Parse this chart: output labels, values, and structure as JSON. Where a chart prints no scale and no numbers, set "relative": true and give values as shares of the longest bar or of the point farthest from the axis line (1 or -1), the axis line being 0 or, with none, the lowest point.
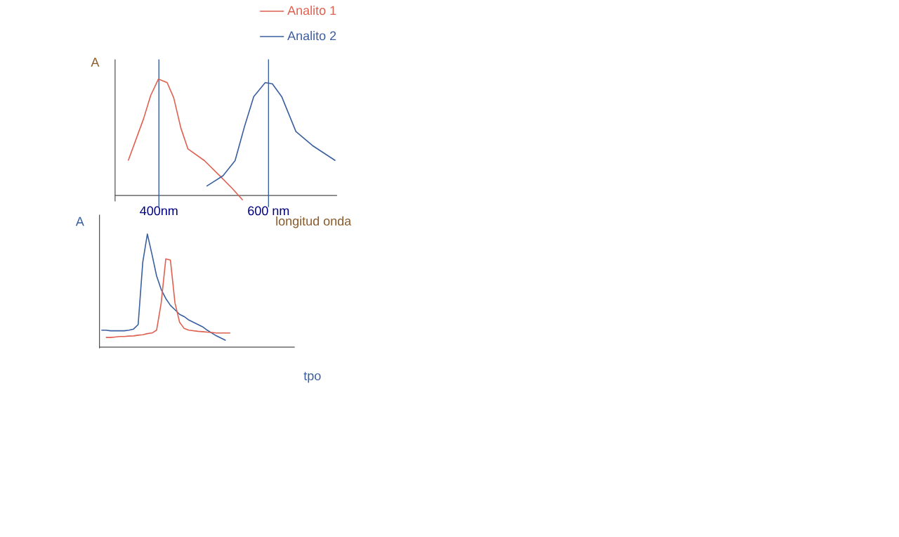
{
  "chart_data": [
    {
      "type": "line",
      "relative": true,
      "xlabel": "longitud onda",
      "ylabel": "A",
      "legend": "top right",
      "xlim": [
        320,
        725
      ],
      "xticks": [
        {
          "value": 400,
          "label": "400nm"
        },
        {
          "value": 600,
          "label": "600 nm"
        }
      ],
      "ref_lines": [
        {
          "axis": "x",
          "value": 400,
          "color": "#3a5fa0"
        },
        {
          "axis": "x",
          "value": 600,
          "color": "#3a5fa0"
        }
      ],
      "series": [
        {
          "name": "Analito 1",
          "color": "#e06050",
          "x": [
            344,
            372,
            385,
            399,
            415,
            427,
            440,
            453,
            483,
            513,
            534,
            553
          ],
          "values": [
            0.3,
            0.66,
            0.86,
            1.0,
            0.97,
            0.84,
            0.58,
            0.4,
            0.3,
            0.16,
            0.06,
            -0.04
          ]
        },
        {
          "name": "Analito 2",
          "color": "#3a5fa0",
          "x": [
            487,
            517,
            539,
            556,
            573,
            594,
            607,
            624,
            650,
            680,
            722
          ],
          "values": [
            0.08,
            0.17,
            0.3,
            0.59,
            0.85,
            0.97,
            0.96,
            0.85,
            0.55,
            0.43,
            0.3
          ]
        }
      ]
    },
    {
      "type": "line",
      "relative": true,
      "xlabel": "tpo",
      "ylabel": "A",
      "categories": [
        null,
        null,
        null,
        null,
        null,
        null,
        null,
        null,
        null,
        null,
        null,
        null,
        null,
        null,
        null,
        null,
        null,
        null,
        null,
        null,
        null,
        null,
        null,
        null,
        null,
        null,
        null,
        null,
        null
      ],
      "series": [
        {
          "color": "#3a5fa0",
          "values": [
            0.15,
            0.15,
            0.145,
            0.145,
            0.145,
            0.145,
            0.15,
            0.16,
            0.2,
            0.75,
            1.0,
            0.82,
            0.63,
            0.51,
            0.43,
            0.37,
            0.33,
            0.29,
            0.27,
            0.24,
            0.22,
            0.2,
            0.18,
            0.15,
            0.125,
            0.1,
            0.08,
            0.06,
            null
          ]
        },
        {
          "color": "#e06050",
          "values": [
            null,
            0.086,
            0.086,
            0.09,
            0.094,
            0.094,
            0.098,
            0.1,
            0.106,
            0.11,
            0.12,
            0.125,
            0.15,
            0.39,
            0.78,
            0.77,
            0.39,
            0.22,
            0.165,
            0.15,
            0.145,
            0.14,
            0.137,
            0.133,
            0.13,
            0.125,
            0.125,
            0.125,
            0.125
          ]
        }
      ]
    }
  ]
}
